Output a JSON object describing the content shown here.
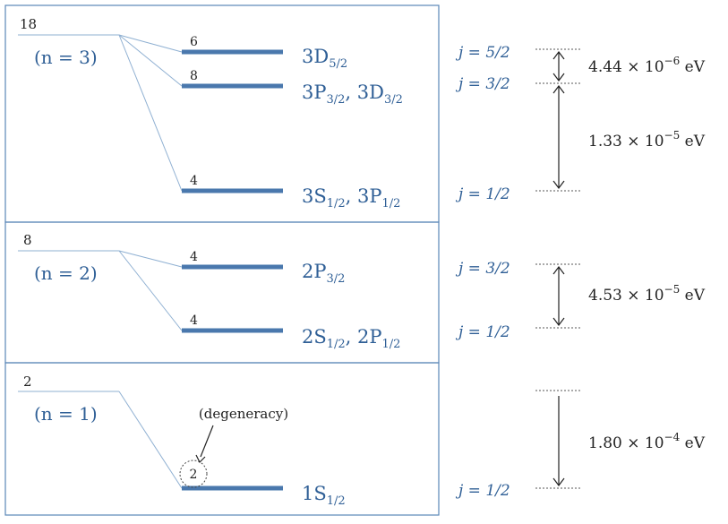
{
  "shells": [
    {
      "degeneracy": "18",
      "n_label": "(n = 3)",
      "levels": [
        {
          "degeneracy": "6",
          "base": "3D",
          "sub": "5/2"
        },
        {
          "degeneracy": "8",
          "base": "3P",
          "sub": "3/2",
          "base2": "3D",
          "sub2": "3/2"
        },
        {
          "degeneracy": "4",
          "base": "3S",
          "sub": "1/2",
          "base2": "3P",
          "sub2": "1/2"
        }
      ]
    },
    {
      "degeneracy": "8",
      "n_label": "(n = 2)",
      "levels": [
        {
          "degeneracy": "4",
          "base": "2P",
          "sub": "3/2"
        },
        {
          "degeneracy": "4",
          "base": "2S",
          "sub": "1/2",
          "base2": "2P",
          "sub2": "1/2"
        }
      ]
    },
    {
      "degeneracy": "2",
      "n_label": "(n = 1)",
      "levels": [
        {
          "degeneracy": "2",
          "base": "1S",
          "sub": "1/2"
        }
      ]
    }
  ],
  "degeneracy_note": "(degeneracy)",
  "j_labels": [
    "j = 5/2",
    "j = 3/2",
    "j = 1/2",
    "j = 3/2",
    "j = 1/2",
    "j = 1/2"
  ],
  "splittings": [
    {
      "mantissa": "4.44",
      "exponent": "−6",
      "unit": "eV"
    },
    {
      "mantissa": "1.33",
      "exponent": "−5",
      "unit": "eV"
    },
    {
      "mantissa": "4.53",
      "exponent": "−5",
      "unit": "eV"
    },
    {
      "mantissa": "1.80",
      "exponent": "−4",
      "unit": "eV"
    }
  ]
}
